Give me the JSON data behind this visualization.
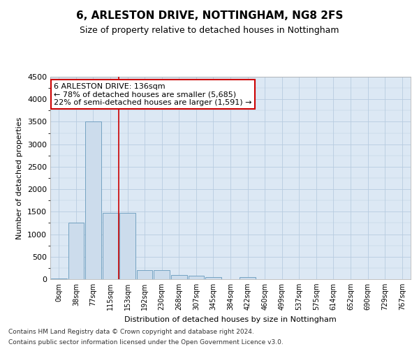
{
  "title": "6, ARLESTON DRIVE, NOTTINGHAM, NG8 2FS",
  "subtitle": "Size of property relative to detached houses in Nottingham",
  "xlabel": "Distribution of detached houses by size in Nottingham",
  "ylabel": "Number of detached properties",
  "bar_color": "#ccdcec",
  "bar_edge_color": "#6699bb",
  "vline_color": "#cc0000",
  "vline_x": 3.5,
  "annotation_line1": "6 ARLESTON DRIVE: 136sqm",
  "annotation_line2": "← 78% of detached houses are smaller (5,685)",
  "annotation_line3": "22% of semi-detached houses are larger (1,591) →",
  "annotation_box_color": "#ffffff",
  "annotation_box_edge": "#cc0000",
  "categories": [
    "0sqm",
    "38sqm",
    "77sqm",
    "115sqm",
    "153sqm",
    "192sqm",
    "230sqm",
    "268sqm",
    "307sqm",
    "345sqm",
    "384sqm",
    "422sqm",
    "460sqm",
    "499sqm",
    "537sqm",
    "575sqm",
    "614sqm",
    "652sqm",
    "690sqm",
    "729sqm",
    "767sqm"
  ],
  "values": [
    10,
    1250,
    3500,
    1470,
    1480,
    200,
    200,
    100,
    70,
    50,
    5,
    50,
    5,
    5,
    0,
    0,
    0,
    0,
    0,
    0,
    0
  ],
  "ylim": [
    0,
    4500
  ],
  "yticks": [
    0,
    500,
    1000,
    1500,
    2000,
    2500,
    3000,
    3500,
    4000,
    4500
  ],
  "footer1": "Contains HM Land Registry data © Crown copyright and database right 2024.",
  "footer2": "Contains public sector information licensed under the Open Government Licence v3.0.",
  "background_color": "#ffffff",
  "plot_bg_color": "#dce8f4",
  "grid_color": "#b8cce0",
  "title_fontsize": 11,
  "subtitle_fontsize": 9,
  "tick_fontsize": 7,
  "ylabel_fontsize": 8,
  "xlabel_fontsize": 8,
  "footer_fontsize": 6.5,
  "annot_fontsize": 8
}
